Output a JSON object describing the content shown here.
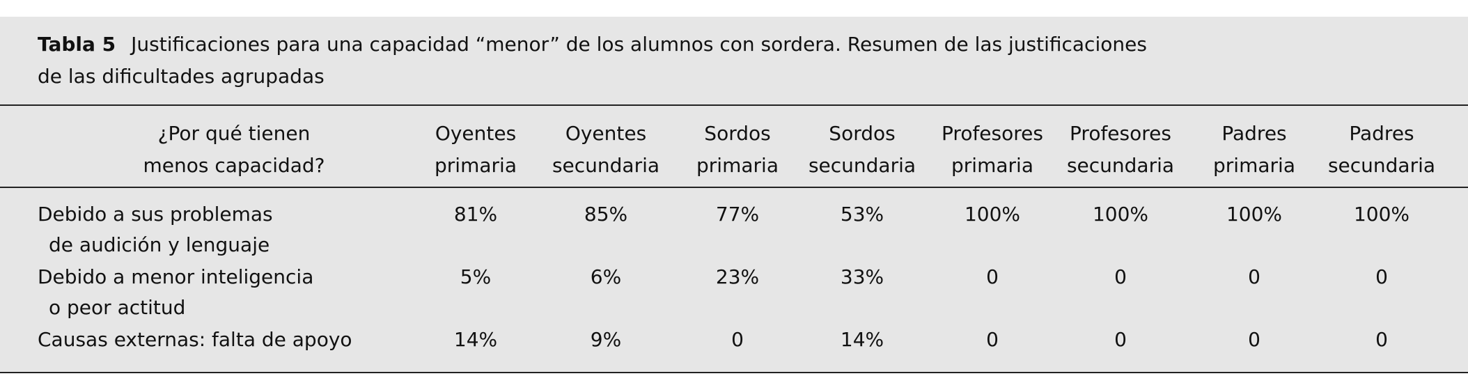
{
  "caption": {
    "label": "Tabla 5",
    "lines": [
      "Justificaciones para una capacidad “menor” de los alumnos con sordera. Resumen de las justificaciones",
      "de las dificultades agrupadas"
    ]
  },
  "table": {
    "header": [
      [
        "¿Por qué tienen",
        "menos capacidad?"
      ],
      [
        "Oyentes",
        "primaria"
      ],
      [
        "Oyentes",
        "secundaria"
      ],
      [
        "Sordos",
        "primaria"
      ],
      [
        "Sordos",
        "secundaria"
      ],
      [
        "Profesores",
        "primaria"
      ],
      [
        "Profesores",
        "secundaria"
      ],
      [
        "Padres",
        "primaria"
      ],
      [
        "Padres",
        "secundaria"
      ]
    ],
    "rows": [
      {
        "label": [
          "Debido a sus problemas",
          "de audición y lenguaje"
        ],
        "cells": [
          "81%",
          "85%",
          "77%",
          "53%",
          "100%",
          "100%",
          "100%",
          "100%"
        ]
      },
      {
        "label": [
          "Debido a menor inteligencia",
          "o peor actitud"
        ],
        "cells": [
          "5%",
          "6%",
          "23%",
          "33%",
          "0",
          "0",
          "0",
          "0"
        ]
      },
      {
        "label": [
          "Causas externas: falta de apoyo"
        ],
        "cells": [
          "14%",
          "9%",
          "0",
          "14%",
          "0",
          "0",
          "0",
          "0"
        ]
      }
    ]
  }
}
